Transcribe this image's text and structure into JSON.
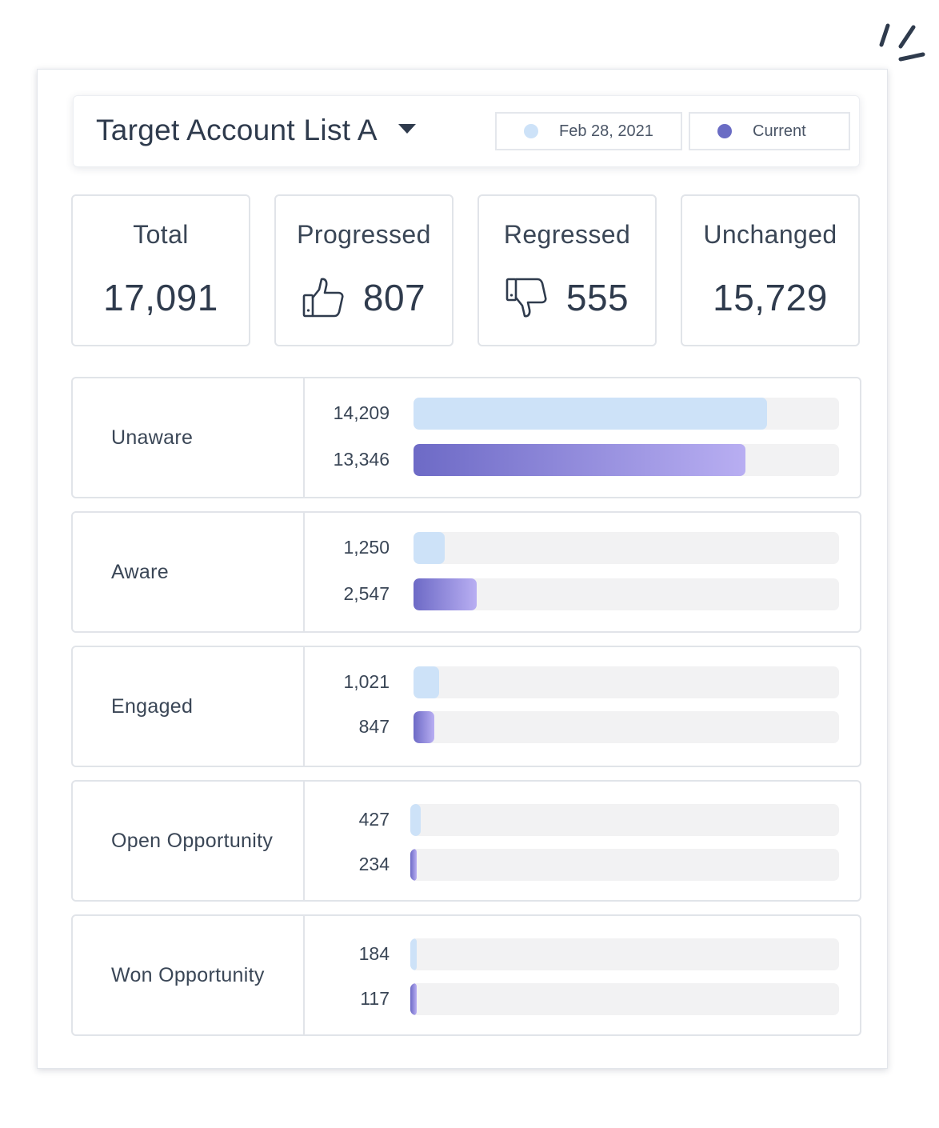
{
  "header": {
    "title": "Target Account List A",
    "legend": [
      {
        "label": "Feb 28, 2021",
        "color": "#cde2f8"
      },
      {
        "label": "Current",
        "color": "#6a6cc4"
      }
    ]
  },
  "stats": [
    {
      "label": "Total",
      "value": "17,091",
      "icon": "none"
    },
    {
      "label": "Progressed",
      "value": "807",
      "icon": "thumbs-up-icon"
    },
    {
      "label": "Regressed",
      "value": "555",
      "icon": "thumbs-down-icon"
    },
    {
      "label": "Unchanged",
      "value": "15,729",
      "icon": "none"
    }
  ],
  "scale_max": 17091,
  "stages": [
    {
      "label": "Unaware",
      "previous": {
        "display": "14,209",
        "value": 14209
      },
      "current": {
        "display": "13,346",
        "value": 13346
      }
    },
    {
      "label": "Aware",
      "previous": {
        "display": "1,250",
        "value": 1250
      },
      "current": {
        "display": "2,547",
        "value": 2547
      }
    },
    {
      "label": "Engaged",
      "previous": {
        "display": "1,021",
        "value": 1021
      },
      "current": {
        "display": "847",
        "value": 847
      }
    },
    {
      "label": "Open Opportunity",
      "previous": {
        "display": "427",
        "value": 427
      },
      "current": {
        "display": "234",
        "value": 234
      }
    },
    {
      "label": "Won Opportunity",
      "previous": {
        "display": "184",
        "value": 184
      },
      "current": {
        "display": "117",
        "value": 117
      }
    }
  ]
}
